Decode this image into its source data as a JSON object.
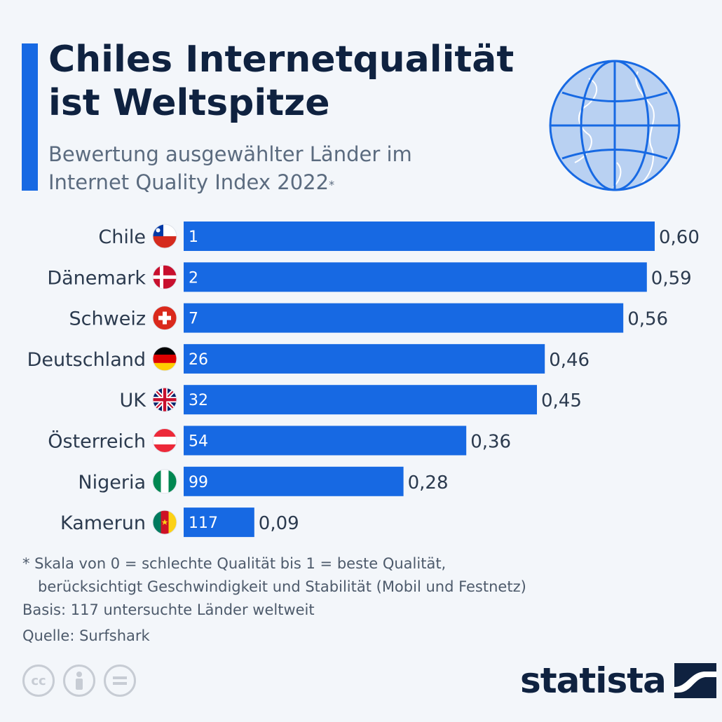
{
  "header": {
    "title_line1": "Chiles Internetqualität",
    "title_line2": "ist Weltspitze",
    "subtitle_line1": "Bewertung ausgewählter Länder im",
    "subtitle_line2": "Internet Quality Index 2022",
    "subtitle_mark": "*"
  },
  "chart_data": {
    "type": "bar",
    "orientation": "horizontal",
    "categories": [
      "Chile",
      "Dänemark",
      "Schweiz",
      "Deutschland",
      "UK",
      "Österreich",
      "Nigeria",
      "Kamerun"
    ],
    "values": [
      0.6,
      0.59,
      0.56,
      0.46,
      0.45,
      0.36,
      0.28,
      0.09
    ],
    "value_labels": [
      "0,60",
      "0,59",
      "0,56",
      "0,46",
      "0,45",
      "0,36",
      "0,28",
      "0,09"
    ],
    "rank_labels": [
      "1",
      "2",
      "7",
      "26",
      "32",
      "54",
      "99",
      "117"
    ],
    "flag_icons": [
      "chile-flag-icon",
      "denmark-flag-icon",
      "switzerland-flag-icon",
      "germany-flag-icon",
      "uk-flag-icon",
      "austria-flag-icon",
      "nigeria-flag-icon",
      "cameroon-flag-icon"
    ],
    "xlim": [
      0,
      0.6
    ],
    "grid": false,
    "bar_color": "#1769e3"
  },
  "footer": {
    "note_line1": "* Skala von 0 = schlechte Qualität bis 1 = beste Qualität,",
    "note_line2": "berücksichtigt Geschwindigkeit und Stabilität (Mobil und Festnetz)",
    "basis": "Basis: 117 untersuchte Länder weltweit",
    "source": "Quelle: Surfshark",
    "license_icons": [
      "cc-icon",
      "attribution-icon",
      "no-derivatives-icon"
    ],
    "brand": "statista"
  },
  "colors": {
    "accent": "#1769e3",
    "title": "#0f2240",
    "text": "#2b3a4e",
    "muted": "#5b6b7f",
    "background": "#f3f6fa"
  }
}
